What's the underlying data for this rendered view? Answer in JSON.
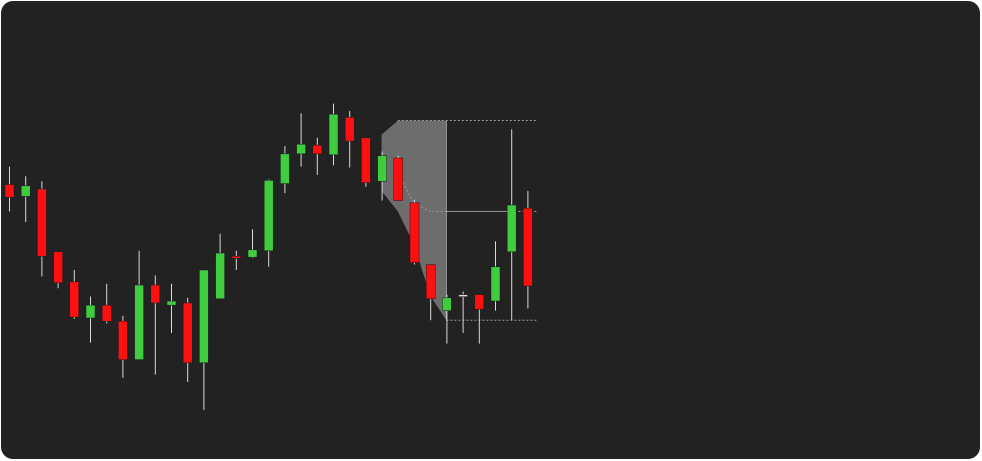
{
  "theme": {
    "background": "#222222",
    "up_color": "#3fcc3f",
    "down_color": "#ff1010",
    "wick_color": "#d8d8d8",
    "guide_color": "#9a9a9a",
    "overlay_color": "#8a8a8a"
  },
  "chart_data": {
    "type": "candlestick",
    "title": "",
    "xlabel": "",
    "ylabel": "",
    "grid": false,
    "legend": "none",
    "ylim": [
      0,
      100
    ],
    "candles": [
      {
        "open": 66.7,
        "close": 62.7,
        "high": 72.3,
        "low": 58.3
      },
      {
        "open": 63.0,
        "close": 66.3,
        "high": 69.3,
        "low": 55.0
      },
      {
        "open": 65.3,
        "close": 44.3,
        "high": 67.7,
        "low": 38.0
      },
      {
        "open": 45.7,
        "close": 36.0,
        "high": 45.7,
        "low": 34.3
      },
      {
        "open": 36.3,
        "close": 25.3,
        "high": 40.0,
        "low": 24.7
      },
      {
        "open": 25.0,
        "close": 29.0,
        "high": 31.7,
        "low": 17.3
      },
      {
        "open": 29.0,
        "close": 24.0,
        "high": 35.7,
        "low": 23.3
      },
      {
        "open": 24.0,
        "close": 12.0,
        "high": 25.7,
        "low": 6.3
      },
      {
        "open": 12.0,
        "close": 35.3,
        "high": 46.0,
        "low": 12.0
      },
      {
        "open": 35.3,
        "close": 29.7,
        "high": 38.3,
        "low": 7.3
      },
      {
        "open": 29.0,
        "close": 30.3,
        "high": 35.7,
        "low": 20.3
      },
      {
        "open": 29.7,
        "close": 11.0,
        "high": 31.3,
        "low": 5.0
      },
      {
        "open": 11.0,
        "close": 40.0,
        "high": 40.0,
        "low": -3.7
      },
      {
        "open": 31.0,
        "close": 45.3,
        "high": 51.3,
        "low": 31.0
      },
      {
        "open": 44.3,
        "close": 43.7,
        "high": 46.0,
        "low": 40.0
      },
      {
        "open": 44.0,
        "close": 46.3,
        "high": 52.7,
        "low": 43.7
      },
      {
        "open": 46.0,
        "close": 68.0,
        "high": 68.3,
        "low": 41.0
      },
      {
        "open": 67.0,
        "close": 76.3,
        "high": 78.7,
        "low": 64.0
      },
      {
        "open": 76.3,
        "close": 79.3,
        "high": 89.0,
        "low": 72.3
      },
      {
        "open": 79.0,
        "close": 76.3,
        "high": 81.3,
        "low": 69.7
      },
      {
        "open": 76.0,
        "close": 88.7,
        "high": 92.0,
        "low": 72.7
      },
      {
        "open": 87.7,
        "close": 80.3,
        "high": 89.7,
        "low": 72.0
      },
      {
        "open": 81.3,
        "close": 67.3,
        "high": 81.3,
        "low": 66.0
      },
      {
        "open": 67.7,
        "close": 75.7,
        "high": 77.0,
        "low": 61.7
      },
      {
        "open": 75.0,
        "close": 61.7,
        "high": 75.7,
        "low": 61.7
      },
      {
        "open": 61.0,
        "close": 42.3,
        "high": 62.0,
        "low": 41.7
      },
      {
        "open": 41.7,
        "close": 31.0,
        "high": 41.7,
        "low": 24.3
      },
      {
        "open": 27.3,
        "close": 31.3,
        "high": 32.3,
        "low": 17.0
      },
      {
        "open": 32.3,
        "close": 32.3,
        "high": 33.3,
        "low": 20.3
      },
      {
        "open": 32.3,
        "close": 27.7,
        "high": 32.3,
        "low": 17.0
      },
      {
        "open": 30.3,
        "close": 41.0,
        "high": 49.0,
        "low": 27.3
      },
      {
        "open": 45.7,
        "close": 60.3,
        "high": 84.0,
        "low": 24.3
      },
      {
        "open": 59.3,
        "close": 35.0,
        "high": 64.7,
        "low": 28.0
      }
    ],
    "reference_lines": [
      86.7,
      58.3,
      24.3
    ],
    "envelope": {
      "start_index": 23,
      "end_index": 27,
      "upper": [
        82.3,
        86.7,
        86.7,
        86.7,
        86.7
      ],
      "lower": [
        64.7,
        58.3,
        48.0,
        32.0,
        24.3
      ]
    },
    "path_line": [
      {
        "i": 24,
        "v": 70.7
      },
      {
        "i": 25,
        "v": 60.7
      },
      {
        "i": 26,
        "v": 58.3
      },
      {
        "i": 31.3,
        "v": 58.3
      }
    ]
  }
}
